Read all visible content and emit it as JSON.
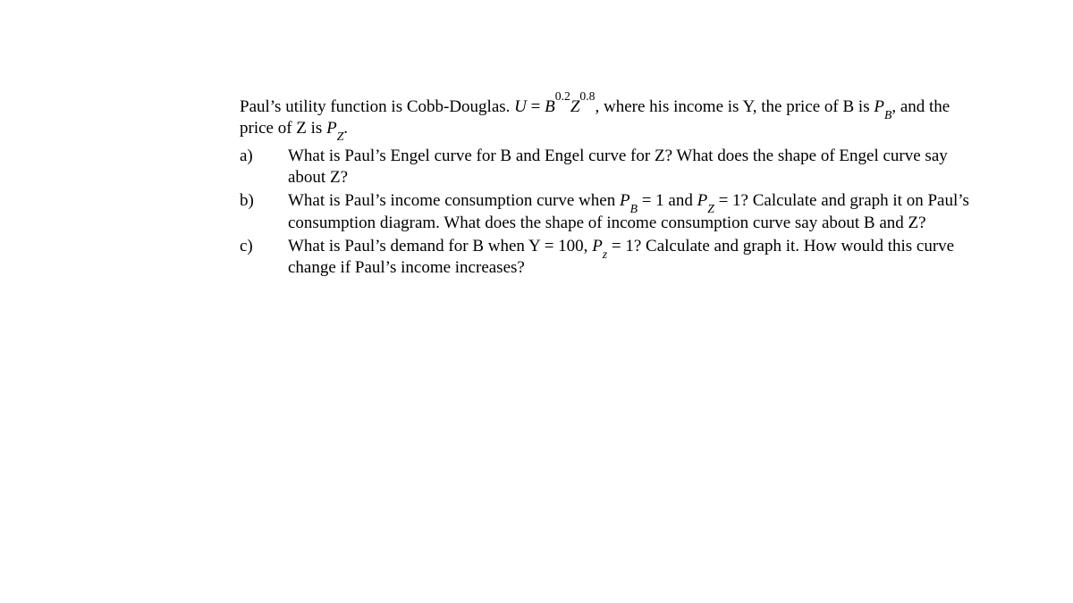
{
  "intro": {
    "pre": "Paul’s utility function is Cobb-Douglas. ",
    "eqU": "U",
    "eq": " = ",
    "B": "B",
    "expB": "0.2",
    "Z": "Z",
    "expZ": "0.8",
    "mid": ", where his income is Y, the price of B is ",
    "PB_P": "P",
    "PB_sub": "B",
    "mid2": ", and the price of Z is ",
    "PZ_P": "P",
    "PZ_sub": "Z",
    "end": "."
  },
  "items": {
    "a": {
      "label": "a)",
      "text": "What is Paul’s Engel curve for B and Engel curve for Z? What does the shape of Engel curve say about Z?"
    },
    "b": {
      "label": "b)",
      "pre": "What is Paul’s income consumption curve when ",
      "PB_P": "P",
      "PB_sub": "B",
      "eq1": " = 1 and ",
      "PZ_P": "P",
      "PZ_sub": "Z",
      "eq2": " = 1? Calculate and graph it on Paul’s consumption diagram. What does the shape of income consumption curve say about B and Z?"
    },
    "c": {
      "label": "c)",
      "pre": "What is Paul’s demand for B when Y = 100, ",
      "Pz_P": "P",
      "Pz_sub": "z",
      "post": " = 1? Calculate and graph it. How would this curve change if Paul’s income increases?"
    }
  }
}
